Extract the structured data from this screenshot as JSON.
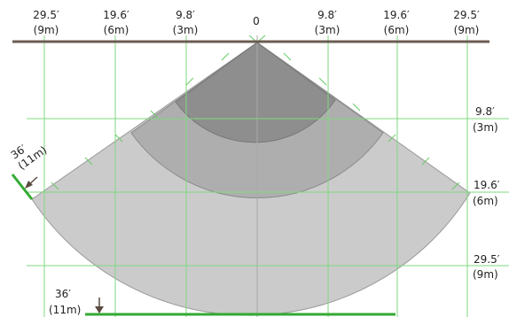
{
  "top_axis": [
    {
      "ft": "29.5′",
      "m": "(9m)"
    },
    {
      "ft": "19.6′",
      "m": "(6m)"
    },
    {
      "ft": "9.8′",
      "m": "(3m)"
    },
    {
      "ft": "0",
      "m": ""
    },
    {
      "ft": "9.8′",
      "m": "(3m)"
    },
    {
      "ft": "19.6′",
      "m": "(6m)"
    },
    {
      "ft": "29.5′",
      "m": "(9m)"
    }
  ],
  "right_axis": [
    {
      "ft": "9.8′",
      "m": "(3m)"
    },
    {
      "ft": "19.6′",
      "m": "(6m)"
    },
    {
      "ft": "29.5′",
      "m": "(9m)"
    }
  ],
  "edge_label": {
    "ft": "36′",
    "m": "(11m)"
  },
  "bottom_label": {
    "ft": "36′",
    "m": "(11m)"
  },
  "colors": {
    "zone_inner": "#8e8e8e",
    "zone_middle": "#aeaeae",
    "zone_outer": "#cbcbcb",
    "grid": "#7fd97f",
    "marker": "#33aa33",
    "ceiling": "#6b5c52"
  }
}
